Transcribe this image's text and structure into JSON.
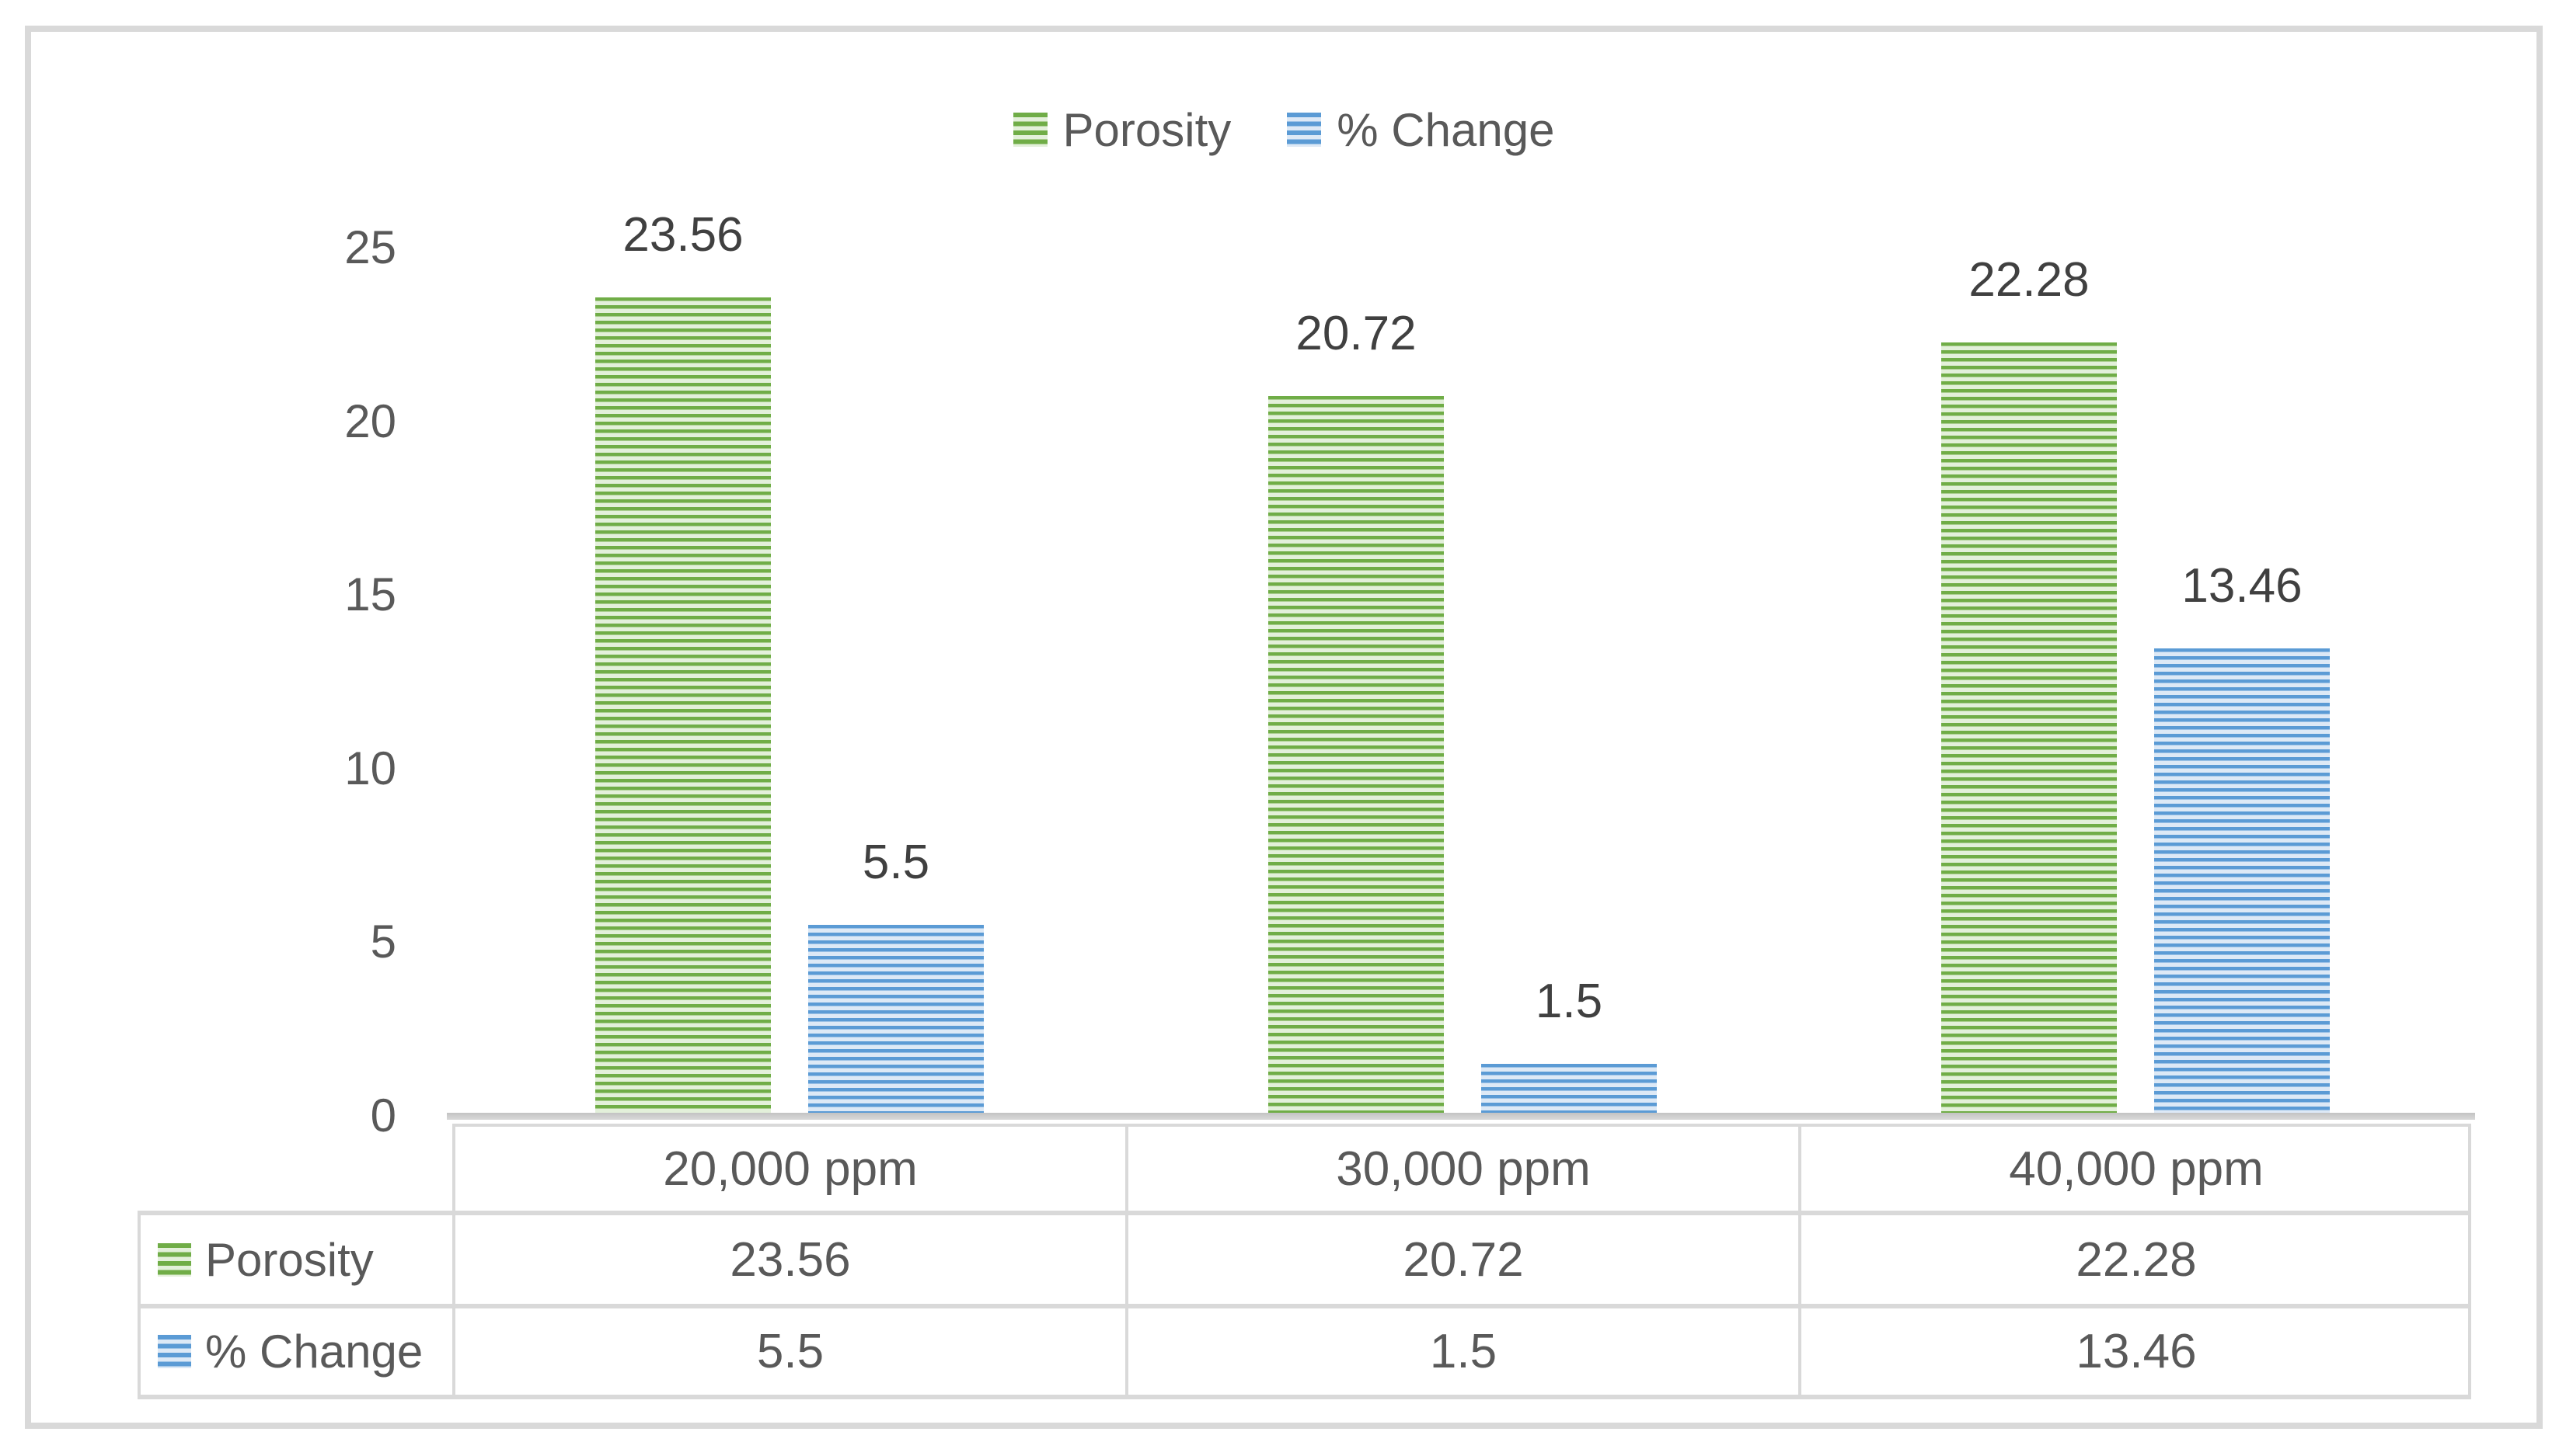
{
  "chart_data": {
    "type": "bar",
    "title": "",
    "categories": [
      "20,000 ppm",
      "30,000 ppm",
      "40,000 ppm"
    ],
    "series": [
      {
        "name": "Porosity",
        "values": [
          23.56,
          20.72,
          22.28
        ],
        "labels": [
          "23.56",
          "20.72",
          "22.28"
        ],
        "color": "#70ad47",
        "fill_light": "#e3f0da",
        "pattern": "horizontal-stripes"
      },
      {
        "name": "% Change",
        "values": [
          5.5,
          1.5,
          13.46
        ],
        "labels": [
          "5.5",
          "1.5",
          "13.46"
        ],
        "color": "#5b9bd5",
        "fill_light": "#dde9f6",
        "pattern": "horizontal-stripes"
      }
    ],
    "xlabel": "",
    "ylabel": "",
    "ylim": [
      0,
      25
    ],
    "yticks": [
      0,
      5,
      10,
      15,
      20,
      25
    ],
    "grid": false,
    "legend_position": "top-center",
    "data_table_shown": true
  },
  "legend": {
    "items": [
      {
        "label": "Porosity",
        "swatch": "green-striped-square"
      },
      {
        "label": "% Change",
        "swatch": "blue-striped-square"
      }
    ]
  },
  "table": {
    "columns": [
      "20,000 ppm",
      "30,000 ppm",
      "40,000 ppm"
    ],
    "rows": [
      {
        "label": "Porosity",
        "swatch": "green-striped-square",
        "values": [
          "23.56",
          "20.72",
          "22.28"
        ]
      },
      {
        "label": "% Change",
        "swatch": "blue-striped-square",
        "values": [
          "5.5",
          "1.5",
          "13.46"
        ]
      }
    ]
  },
  "colors": {
    "series1_stripe": "#70ad47",
    "series1_background": "#e3f0da",
    "series2_stripe": "#5b9bd5",
    "series2_background": "#dde9f6",
    "text": "#595959",
    "data_label_text": "#404040",
    "axis_line": "#c9c9c9",
    "table_border": "#d9d9d9",
    "frame_border": "#d9d9d9"
  }
}
